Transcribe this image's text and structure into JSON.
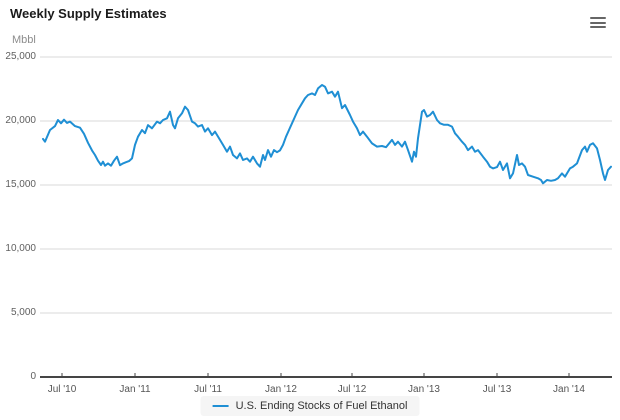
{
  "header": {
    "title": "Weekly Supply Estimates"
  },
  "toolbar": {
    "context_menu_icon": "hamburger-menu-icon"
  },
  "legend": {
    "label": "U.S. Ending Stocks of Fuel Ethanol"
  },
  "chart_data": {
    "type": "line",
    "title": "Weekly Supply Estimates",
    "y_axis_title": "Mbbl",
    "ylim": [
      0,
      25000
    ],
    "y_ticks": [
      25000,
      20000,
      15000,
      10000,
      5000,
      0
    ],
    "y_tick_labels": [
      "25,000",
      "20,000",
      "15,000",
      "10,000",
      "5,000",
      "0"
    ],
    "x_tick_labels": [
      "Jul '10",
      "Jan '11",
      "Jul '11",
      "Jan '12",
      "Jul '12",
      "Jan '13",
      "Jul '13",
      "Jan '14"
    ],
    "grid": "horizontal",
    "legend_position": "bottom-center",
    "colors": {
      "series": "#1f8fd4",
      "grid": "#d8d8d8",
      "axis": "#454545",
      "legend_bg": "#f5f5f5"
    },
    "series": [
      {
        "name": "U.S. Ending Stocks of Fuel Ethanol",
        "color": "#1f8fd4",
        "unit": "Mbbl",
        "points": [
          [
            43,
            18600
          ],
          [
            45,
            18380
          ],
          [
            50,
            19300
          ],
          [
            55,
            19600
          ],
          [
            58,
            20080
          ],
          [
            61,
            19820
          ],
          [
            64,
            20100
          ],
          [
            67,
            19850
          ],
          [
            70,
            19950
          ],
          [
            75,
            19600
          ],
          [
            80,
            19480
          ],
          [
            84,
            19000
          ],
          [
            88,
            18300
          ],
          [
            92,
            17700
          ],
          [
            95,
            17340
          ],
          [
            98,
            16900
          ],
          [
            101,
            16560
          ],
          [
            103,
            16820
          ],
          [
            105,
            16510
          ],
          [
            108,
            16690
          ],
          [
            111,
            16510
          ],
          [
            114,
            16900
          ],
          [
            117,
            17210
          ],
          [
            120,
            16550
          ],
          [
            123,
            16690
          ],
          [
            126,
            16780
          ],
          [
            129,
            16870
          ],
          [
            132,
            17080
          ],
          [
            135,
            18130
          ],
          [
            138,
            18770
          ],
          [
            142,
            19300
          ],
          [
            145,
            19050
          ],
          [
            148,
            19680
          ],
          [
            152,
            19430
          ],
          [
            157,
            19950
          ],
          [
            160,
            19820
          ],
          [
            163,
            20080
          ],
          [
            167,
            20210
          ],
          [
            170,
            20730
          ],
          [
            173,
            19690
          ],
          [
            175,
            19430
          ],
          [
            178,
            20210
          ],
          [
            182,
            20600
          ],
          [
            185,
            21120
          ],
          [
            188,
            20860
          ],
          [
            192,
            19950
          ],
          [
            195,
            19820
          ],
          [
            198,
            19560
          ],
          [
            202,
            19690
          ],
          [
            205,
            19170
          ],
          [
            208,
            19430
          ],
          [
            212,
            18900
          ],
          [
            215,
            19170
          ],
          [
            220,
            18520
          ],
          [
            223,
            18130
          ],
          [
            227,
            17600
          ],
          [
            230,
            18000
          ],
          [
            233,
            17340
          ],
          [
            237,
            17080
          ],
          [
            240,
            17470
          ],
          [
            243,
            16950
          ],
          [
            247,
            17080
          ],
          [
            250,
            16820
          ],
          [
            253,
            17210
          ],
          [
            257,
            16690
          ],
          [
            260,
            16430
          ],
          [
            263,
            17340
          ],
          [
            265,
            16950
          ],
          [
            268,
            17730
          ],
          [
            271,
            17210
          ],
          [
            274,
            17730
          ],
          [
            277,
            17560
          ],
          [
            280,
            17700
          ],
          [
            283,
            18130
          ],
          [
            286,
            18770
          ],
          [
            289,
            19300
          ],
          [
            292,
            19820
          ],
          [
            295,
            20340
          ],
          [
            298,
            20860
          ],
          [
            302,
            21380
          ],
          [
            305,
            21770
          ],
          [
            308,
            22030
          ],
          [
            312,
            22160
          ],
          [
            315,
            22030
          ],
          [
            318,
            22550
          ],
          [
            322,
            22810
          ],
          [
            325,
            22680
          ],
          [
            328,
            22160
          ],
          [
            332,
            22290
          ],
          [
            335,
            21900
          ],
          [
            338,
            22290
          ],
          [
            342,
            21000
          ],
          [
            345,
            21250
          ],
          [
            350,
            20470
          ],
          [
            353,
            19950
          ],
          [
            357,
            19430
          ],
          [
            360,
            18900
          ],
          [
            363,
            19170
          ],
          [
            367,
            18770
          ],
          [
            372,
            18250
          ],
          [
            377,
            18000
          ],
          [
            382,
            18050
          ],
          [
            386,
            17950
          ],
          [
            392,
            18520
          ],
          [
            395,
            18130
          ],
          [
            398,
            18380
          ],
          [
            402,
            18000
          ],
          [
            405,
            18380
          ],
          [
            408,
            17730
          ],
          [
            412,
            16820
          ],
          [
            414,
            17600
          ],
          [
            416,
            17210
          ],
          [
            418,
            18650
          ],
          [
            422,
            20730
          ],
          [
            424,
            20860
          ],
          [
            427,
            20340
          ],
          [
            430,
            20470
          ],
          [
            433,
            20730
          ],
          [
            437,
            20080
          ],
          [
            440,
            19820
          ],
          [
            444,
            19700
          ],
          [
            448,
            19700
          ],
          [
            452,
            19560
          ],
          [
            455,
            19040
          ],
          [
            458,
            18770
          ],
          [
            462,
            18380
          ],
          [
            465,
            18130
          ],
          [
            468,
            17730
          ],
          [
            472,
            18000
          ],
          [
            475,
            17600
          ],
          [
            478,
            17730
          ],
          [
            483,
            17210
          ],
          [
            487,
            16820
          ],
          [
            490,
            16430
          ],
          [
            493,
            16300
          ],
          [
            497,
            16400
          ],
          [
            500,
            16820
          ],
          [
            503,
            16170
          ],
          [
            507,
            16690
          ],
          [
            510,
            15520
          ],
          [
            513,
            15910
          ],
          [
            517,
            17340
          ],
          [
            519,
            16560
          ],
          [
            522,
            16690
          ],
          [
            525,
            16430
          ],
          [
            528,
            15780
          ],
          [
            533,
            15650
          ],
          [
            538,
            15520
          ],
          [
            541,
            15390
          ],
          [
            543,
            15130
          ],
          [
            547,
            15390
          ],
          [
            551,
            15330
          ],
          [
            555,
            15390
          ],
          [
            558,
            15520
          ],
          [
            562,
            15910
          ],
          [
            565,
            15650
          ],
          [
            570,
            16300
          ],
          [
            573,
            16430
          ],
          [
            577,
            16690
          ],
          [
            582,
            17730
          ],
          [
            585,
            18000
          ],
          [
            587,
            17600
          ],
          [
            590,
            18130
          ],
          [
            593,
            18260
          ],
          [
            597,
            17860
          ],
          [
            600,
            16950
          ],
          [
            603,
            15910
          ],
          [
            605,
            15390
          ],
          [
            608,
            16170
          ],
          [
            611,
            16430
          ]
        ]
      }
    ]
  }
}
